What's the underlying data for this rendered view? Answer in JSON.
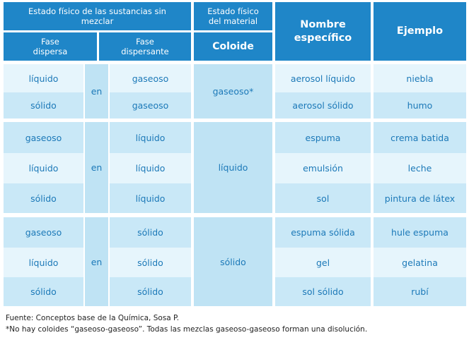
{
  "header": {
    "group_title": "Estado físico de las sustancias sin mezclar",
    "fase_dispersa": "Fase dispersa",
    "fase_dispersante": "Fase dispersante",
    "estado_material": "Estado físico del material",
    "coloide": "Coloide",
    "nombre_especifico": "Nombre específico",
    "ejemplo": "Ejemplo"
  },
  "connector": "en",
  "groups": [
    {
      "colloid_state": "gaseoso*",
      "rows": [
        {
          "dispersa": "líquido",
          "dispersante": "gaseoso",
          "nombre": "aerosol líquido",
          "ejemplo": "niebla"
        },
        {
          "dispersa": "sólido",
          "dispersante": "gaseoso",
          "nombre": "aerosol sólido",
          "ejemplo": "humo"
        }
      ]
    },
    {
      "colloid_state": "líquido",
      "rows": [
        {
          "dispersa": "gaseoso",
          "dispersante": "líquido",
          "nombre": "espuma",
          "ejemplo": "crema batida"
        },
        {
          "dispersa": "líquido",
          "dispersante": "líquido",
          "nombre": "emulsión",
          "ejemplo": "leche"
        },
        {
          "dispersa": "sólido",
          "dispersante": "líquido",
          "nombre": "sol",
          "ejemplo": "pintura de látex"
        }
      ]
    },
    {
      "colloid_state": "sólido",
      "rows": [
        {
          "dispersa": "gaseoso",
          "dispersante": "sólido",
          "nombre": "espuma sólida",
          "ejemplo": "hule espuma"
        },
        {
          "dispersa": "líquido",
          "dispersante": "sólido",
          "nombre": "gel",
          "ejemplo": "gelatina"
        },
        {
          "dispersa": "sólido",
          "dispersante": "sólido",
          "nombre": "sol sólido",
          "ejemplo": "rubí"
        }
      ]
    }
  ],
  "footnotes": {
    "source": "Fuente: Conceptos base de la Química, Sosa P.",
    "note": "*No hay coloides “gaseoso-gaseoso”. Todas las mezclas gaseoso-gaseoso forman una disolución."
  }
}
